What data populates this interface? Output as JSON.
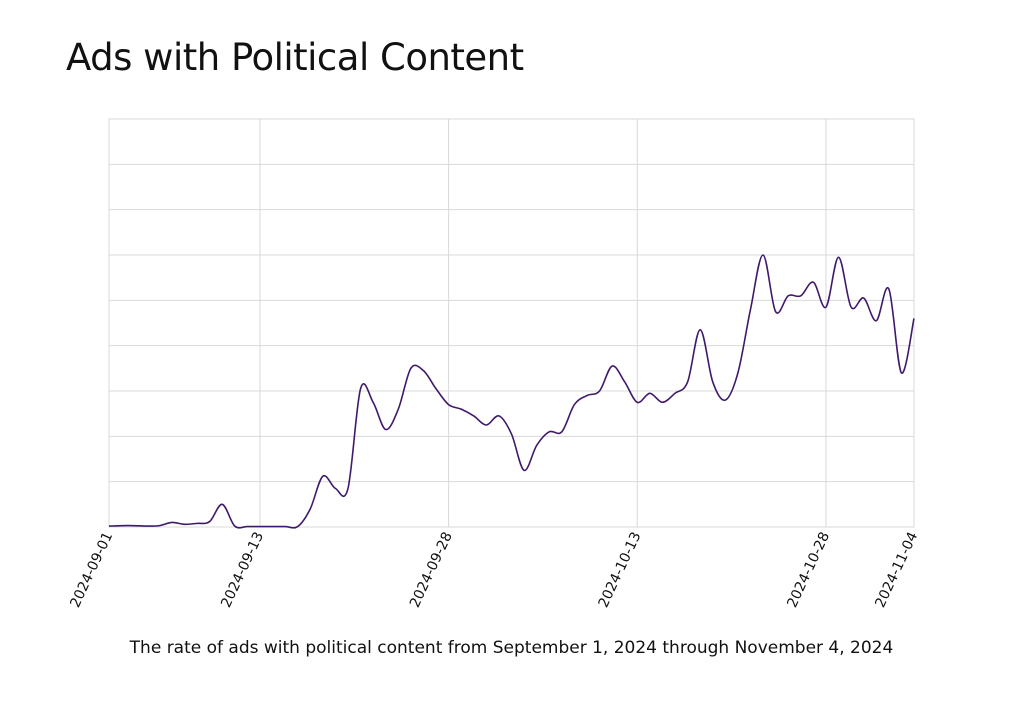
{
  "title": "Ads with Political Content",
  "caption": "The rate of ads with political content from September 1, 2024 through November 4, 2024",
  "colors": {
    "line": "#3f1a6b",
    "grid": "#d8d8d8",
    "text": "#111111"
  },
  "chart_data": {
    "type": "line",
    "title": "Ads with Political Content",
    "xlabel": "",
    "ylabel": "",
    "y_tick_labels_visible": false,
    "grid": true,
    "x_ticks": [
      "2024-09-01",
      "2024-09-13",
      "2024-09-28",
      "2024-10-13",
      "2024-10-28",
      "2024-11-04"
    ],
    "xlim": [
      "2024-09-01",
      "2024-11-04"
    ],
    "ylim": [
      0,
      9
    ],
    "series": [
      {
        "values": [
          [
            "2024-09-01",
            0.02
          ],
          [
            "2024-09-02",
            0.03
          ],
          [
            "2024-09-03",
            0.03
          ],
          [
            "2024-09-04",
            0.02
          ],
          [
            "2024-09-05",
            0.03
          ],
          [
            "2024-09-06",
            0.1
          ],
          [
            "2024-09-07",
            0.06
          ],
          [
            "2024-09-08",
            0.08
          ],
          [
            "2024-09-09",
            0.12
          ],
          [
            "2024-09-10",
            0.5
          ],
          [
            "2024-09-11",
            0.02
          ],
          [
            "2024-09-12",
            0.01
          ],
          [
            "2024-09-13",
            0.01
          ],
          [
            "2024-09-14",
            0.01
          ],
          [
            "2024-09-15",
            0.01
          ],
          [
            "2024-09-16",
            0.01
          ],
          [
            "2024-09-17",
            0.4
          ],
          [
            "2024-09-18",
            1.12
          ],
          [
            "2024-09-19",
            0.85
          ],
          [
            "2024-09-20",
            0.85
          ],
          [
            "2024-09-21",
            3.05
          ],
          [
            "2024-09-22",
            2.75
          ],
          [
            "2024-09-23",
            2.15
          ],
          [
            "2024-09-24",
            2.6
          ],
          [
            "2024-09-25",
            3.5
          ],
          [
            "2024-09-26",
            3.45
          ],
          [
            "2024-09-27",
            3.05
          ],
          [
            "2024-09-28",
            2.7
          ],
          [
            "2024-09-29",
            2.6
          ],
          [
            "2024-09-30",
            2.45
          ],
          [
            "2024-10-01",
            2.25
          ],
          [
            "2024-10-02",
            2.45
          ],
          [
            "2024-10-03",
            2.05
          ],
          [
            "2024-10-04",
            1.25
          ],
          [
            "2024-10-05",
            1.8
          ],
          [
            "2024-10-06",
            2.1
          ],
          [
            "2024-10-07",
            2.1
          ],
          [
            "2024-10-08",
            2.7
          ],
          [
            "2024-10-09",
            2.9
          ],
          [
            "2024-10-10",
            3.0
          ],
          [
            "2024-10-11",
            3.55
          ],
          [
            "2024-10-12",
            3.2
          ],
          [
            "2024-10-13",
            2.75
          ],
          [
            "2024-10-14",
            2.95
          ],
          [
            "2024-10-15",
            2.75
          ],
          [
            "2024-10-16",
            2.95
          ],
          [
            "2024-10-17",
            3.2
          ],
          [
            "2024-10-18",
            4.35
          ],
          [
            "2024-10-19",
            3.2
          ],
          [
            "2024-10-20",
            2.8
          ],
          [
            "2024-10-21",
            3.4
          ],
          [
            "2024-10-22",
            4.8
          ],
          [
            "2024-10-23",
            6.0
          ],
          [
            "2024-10-24",
            4.75
          ],
          [
            "2024-10-25",
            5.1
          ],
          [
            "2024-10-26",
            5.1
          ],
          [
            "2024-10-27",
            5.4
          ],
          [
            "2024-10-28",
            4.85
          ],
          [
            "2024-10-29",
            5.95
          ],
          [
            "2024-10-30",
            4.85
          ],
          [
            "2024-10-31",
            5.05
          ],
          [
            "2024-11-01",
            4.55
          ],
          [
            "2024-11-02",
            5.25
          ],
          [
            "2024-11-03",
            3.4
          ],
          [
            "2024-11-04",
            4.6
          ]
        ]
      }
    ]
  }
}
